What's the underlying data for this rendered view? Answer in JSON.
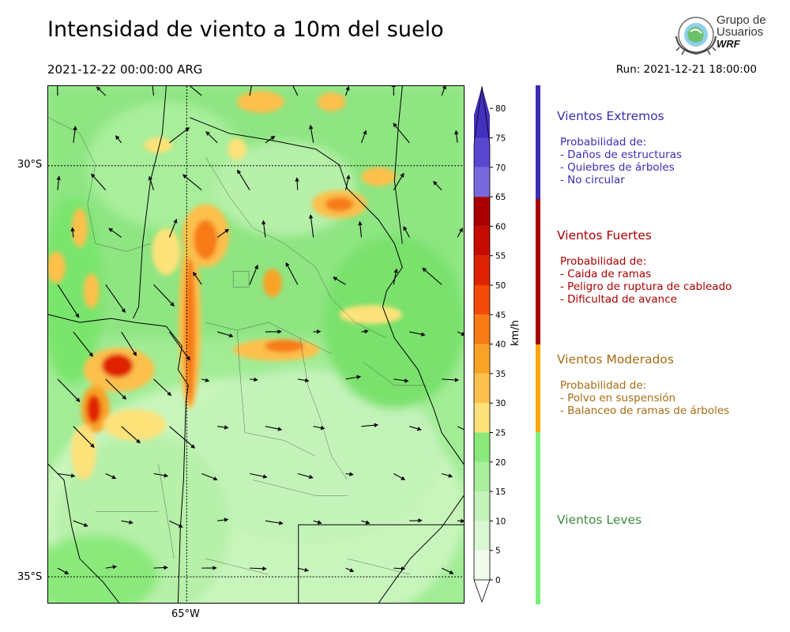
{
  "header": {
    "title": "Intensidad de viento a 10m del suelo",
    "valid_time": "2021-12-22 00:00:00 ARG",
    "run": "Run: 2021-12-21 18:00:00"
  },
  "logo": {
    "line1": "Grupo de",
    "line2": "Usuarios",
    "brand": "WRF"
  },
  "map": {
    "lat_labels": [
      "30°S",
      "35°S"
    ],
    "lon_labels": [
      "65°W"
    ]
  },
  "colorbar": {
    "unit": "km/h",
    "ticks": [
      "0",
      "5",
      "10",
      "15",
      "20",
      "25",
      "30",
      "35",
      "40",
      "45",
      "50",
      "55",
      "60",
      "65",
      "70",
      "75",
      "80"
    ],
    "colors": [
      "#f1fcef",
      "#d9f7d3",
      "#c3f3b9",
      "#a8ee9b",
      "#8ae97a",
      "#fde27a",
      "#fcc04c",
      "#f9a326",
      "#f77a13",
      "#f24a07",
      "#df2302",
      "#c60b00",
      "#aa0000",
      "#7869dd",
      "#5a47cf",
      "#4231bf"
    ]
  },
  "categories": [
    {
      "title": "Vientos Extremos",
      "color": "#3b2db3",
      "bar_color": "#3b2db3",
      "lines": [
        "Probabilidad de:",
        "- Daños de estructuras",
        "- Quiebres de árboles",
        "- No circular"
      ]
    },
    {
      "title": "Vientos Fuertes",
      "color": "#a80000",
      "bar_color": "#a80000",
      "lines": [
        "Probabilidad de:",
        "- Caida de ramas",
        "- Peligro de ruptura de cableado",
        "- Dificultad de avance"
      ]
    },
    {
      "title": "Vientos Moderados",
      "color": "#a86b12",
      "bar_color": "#ffa50a",
      "lines": [
        "Probabilidad de:",
        "- Polvo en suspensión",
        "- Balanceo de ramas de árboles"
      ]
    },
    {
      "title": "Vientos Leves",
      "color": "#3d8a3d",
      "bar_color": "#7af07a",
      "lines": []
    }
  ]
}
